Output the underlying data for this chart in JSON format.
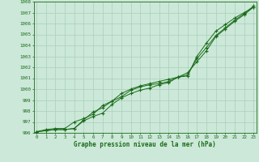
{
  "title": "Graphe pression niveau de la mer (hPa)",
  "background_color": "#cce8d8",
  "grid_color": "#aacfbc",
  "line_color": "#1a6b1a",
  "x_ticks": [
    0,
    1,
    2,
    3,
    4,
    5,
    6,
    7,
    8,
    9,
    10,
    11,
    12,
    13,
    14,
    15,
    16,
    17,
    18,
    19,
    20,
    21,
    22,
    23
  ],
  "y_min": 996,
  "y_max": 1008,
  "series1": [
    996.1,
    996.3,
    996.4,
    996.4,
    997.0,
    997.3,
    997.7,
    998.5,
    998.9,
    999.3,
    999.9,
    1000.2,
    1000.4,
    1000.5,
    1000.7,
    1001.1,
    1001.2,
    1003.0,
    1004.2,
    1005.3,
    1005.9,
    1006.5,
    1007.0,
    1007.5
  ],
  "series2": [
    996.1,
    996.2,
    996.3,
    996.3,
    996.4,
    997.2,
    997.9,
    998.3,
    998.9,
    999.6,
    1000.0,
    1000.3,
    1000.5,
    1000.7,
    1000.9,
    1001.1,
    1001.5,
    1002.5,
    1003.5,
    1004.8,
    1005.5,
    1006.2,
    1006.8,
    1007.5
  ],
  "series3": [
    996.1,
    996.2,
    996.3,
    996.3,
    996.4,
    997.1,
    997.5,
    997.8,
    998.6,
    999.2,
    999.6,
    999.9,
    1000.1,
    1000.4,
    1000.6,
    1001.1,
    1001.3,
    1002.8,
    1003.8,
    1004.9,
    1005.6,
    1006.3,
    1006.9,
    1007.6
  ]
}
